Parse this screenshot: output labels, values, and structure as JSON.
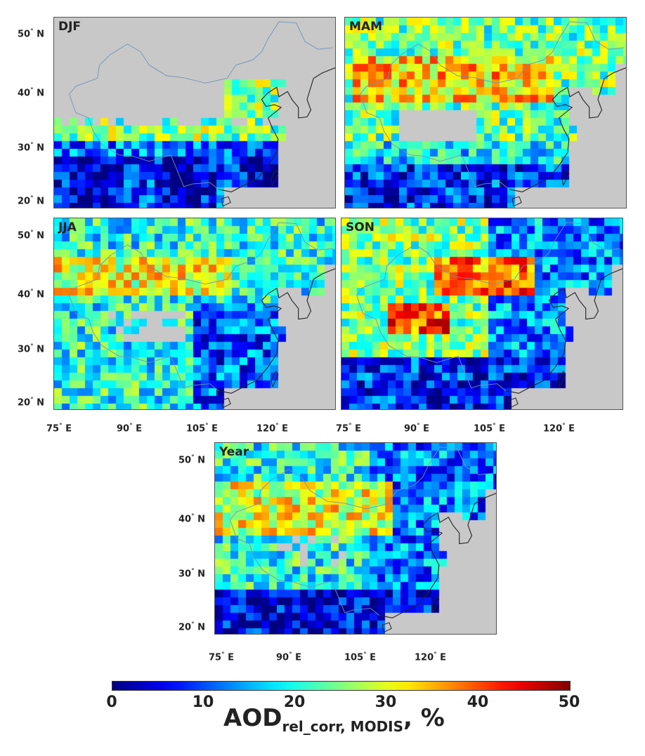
{
  "panels": [
    {
      "key": "djf",
      "title": "DJF"
    },
    {
      "key": "mam",
      "title": "MAM"
    },
    {
      "key": "jja",
      "title": "JJA"
    },
    {
      "key": "son",
      "title": "SON"
    },
    {
      "key": "year",
      "title": "Year"
    }
  ],
  "axes": {
    "lat_labels": [
      "50",
      "40",
      "30",
      "20"
    ],
    "lon_labels": [
      "75",
      "90",
      "105",
      "120"
    ],
    "north": "N",
    "east": "E",
    "degree": "°"
  },
  "colorbar": {
    "ticks": [
      "0",
      "10",
      "20",
      "30",
      "40",
      "50"
    ],
    "range": [
      0,
      50
    ],
    "title_main": "AOD",
    "title_sub": "rel_corr, MODIS",
    "title_unit": ", %",
    "colormap": "jet"
  },
  "map": {
    "lon_range": [
      70,
      135
    ],
    "lat_range": [
      18,
      54
    ],
    "background_color": "#c8c8c8",
    "coastline_color": "#222222",
    "border_color": "#6f93b8"
  }
}
